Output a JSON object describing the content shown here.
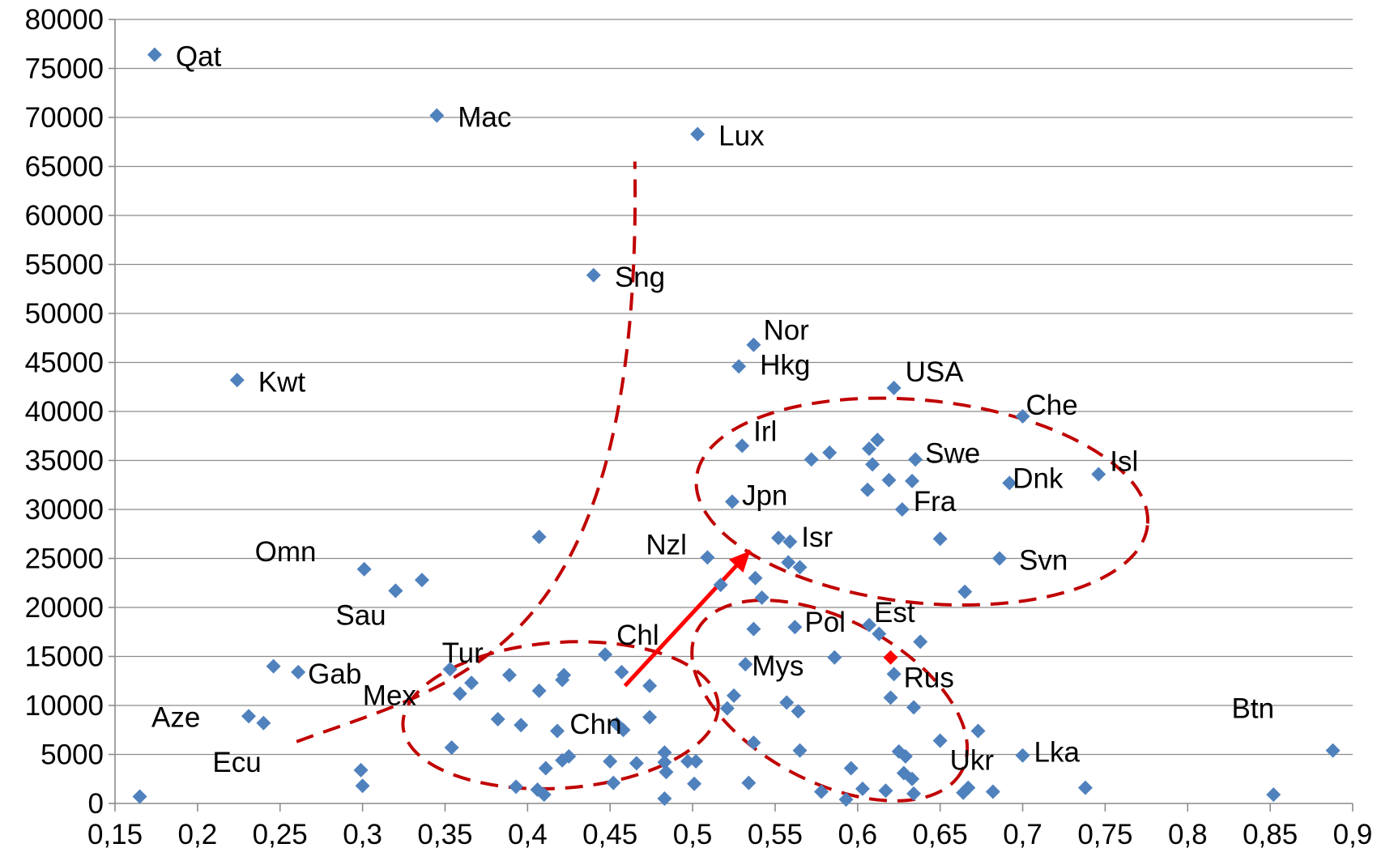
{
  "chart_data": {
    "type": "scatter",
    "title": "",
    "xlabel": "",
    "ylabel": "",
    "xlim": [
      0.15,
      0.9
    ],
    "ylim": [
      0,
      80000
    ],
    "x_ticks": [
      "0,15",
      "0,2",
      "0,25",
      "0,3",
      "0,35",
      "0,4",
      "0,45",
      "0,5",
      "0,55",
      "0,6",
      "0,65",
      "0,7",
      "0,75",
      "0,8",
      "0,85",
      "0,9"
    ],
    "y_ticks": [
      "0",
      "5000",
      "10000",
      "15000",
      "20000",
      "25000",
      "30000",
      "35000",
      "40000",
      "45000",
      "50000",
      "55000",
      "60000",
      "65000",
      "70000",
      "75000",
      "80000"
    ],
    "grid": "horizontal",
    "marker_color": "#4f81bd",
    "highlight_color": "#ff0000",
    "annotation_color": "#c00000",
    "labeled_points": [
      {
        "name": "Qat",
        "x": 0.174,
        "y": 76400
      },
      {
        "name": "Mac",
        "x": 0.345,
        "y": 70200
      },
      {
        "name": "Lux",
        "x": 0.503,
        "y": 68300
      },
      {
        "name": "Sng",
        "x": 0.44,
        "y": 53900
      },
      {
        "name": "Nor",
        "x": 0.537,
        "y": 46800
      },
      {
        "name": "Hkg",
        "x": 0.528,
        "y": 44600
      },
      {
        "name": "Kwt",
        "x": 0.224,
        "y": 43200
      },
      {
        "name": "USA",
        "x": 0.622,
        "y": 42400
      },
      {
        "name": "Che",
        "x": 0.7,
        "y": 39500
      },
      {
        "name": "Irl",
        "x": 0.53,
        "y": 36500
      },
      {
        "name": "Swe",
        "x": 0.635,
        "y": 35100
      },
      {
        "name": "Isl",
        "x": 0.746,
        "y": 33600
      },
      {
        "name": "Dnk",
        "x": 0.692,
        "y": 32700
      },
      {
        "name": "Jpn",
        "x": 0.524,
        "y": 30800
      },
      {
        "name": "Fra",
        "x": 0.627,
        "y": 30000
      },
      {
        "name": "Isr",
        "x": 0.559,
        "y": 26700
      },
      {
        "name": "Nzl",
        "x": 0.509,
        "y": 25100
      },
      {
        "name": "Svn",
        "x": 0.686,
        "y": 25000
      },
      {
        "name": "Omn",
        "x": 0.301,
        "y": 23900
      },
      {
        "name": "Sau",
        "x": 0.32,
        "y": 21700
      },
      {
        "name": "Pol",
        "x": 0.562,
        "y": 18000
      },
      {
        "name": "Est",
        "x": 0.607,
        "y": 18200
      },
      {
        "name": "Chl",
        "x": 0.447,
        "y": 15200
      },
      {
        "name": "Mys",
        "x": 0.532,
        "y": 14200
      },
      {
        "name": "Tur",
        "x": 0.353,
        "y": 13700
      },
      {
        "name": "Gab",
        "x": 0.261,
        "y": 13400
      },
      {
        "name": "Rus",
        "x": 0.622,
        "y": 13200
      },
      {
        "name": "Mex",
        "x": 0.359,
        "y": 11200
      },
      {
        "name": "Aze",
        "x": 0.231,
        "y": 8900
      },
      {
        "name": "Chn",
        "x": 0.454,
        "y": 8100
      },
      {
        "name": "Ecu",
        "x": 0.24,
        "y": 8200
      },
      {
        "name": "Ukr",
        "x": 0.65,
        "y": 6400
      },
      {
        "name": "Lka",
        "x": 0.7,
        "y": 4900
      },
      {
        "name": "Btn",
        "x": 0.888,
        "y": 5400
      }
    ],
    "label_texts": [
      "Qat",
      "Mac",
      "Lux",
      "Sng",
      "Nor",
      "Hkg",
      "Kwt",
      "USA",
      "Che",
      "Irl",
      "Swe",
      "Isl",
      "Dnk",
      "Jpn",
      "Fra",
      "Isr",
      "Nzl",
      "Svn",
      "Omn",
      "Sau",
      "Pol",
      "Est",
      "Chl",
      "Mys",
      "Tur",
      "Gab",
      "Rus",
      "Mex",
      "Aze",
      "Chn",
      "Ecu",
      "Ukr",
      "Lka",
      "Btn"
    ],
    "points": [
      [
        0.165,
        700
      ],
      [
        0.246,
        14000
      ],
      [
        0.299,
        3400
      ],
      [
        0.3,
        1800
      ],
      [
        0.32,
        21700
      ],
      [
        0.336,
        22800
      ],
      [
        0.354,
        5700
      ],
      [
        0.366,
        12300
      ],
      [
        0.389,
        13100
      ],
      [
        0.382,
        8600
      ],
      [
        0.396,
        8000
      ],
      [
        0.393,
        1700
      ],
      [
        0.407,
        27200
      ],
      [
        0.406,
        1400
      ],
      [
        0.41,
        900
      ],
      [
        0.411,
        3600
      ],
      [
        0.421,
        12600
      ],
      [
        0.422,
        13100
      ],
      [
        0.407,
        11500
      ],
      [
        0.418,
        7400
      ],
      [
        0.421,
        4400
      ],
      [
        0.425,
        4800
      ],
      [
        0.45,
        4300
      ],
      [
        0.452,
        2100
      ],
      [
        0.458,
        7500
      ],
      [
        0.457,
        13400
      ],
      [
        0.466,
        4100
      ],
      [
        0.474,
        12000
      ],
      [
        0.474,
        8800
      ],
      [
        0.483,
        5200
      ],
      [
        0.483,
        4200
      ],
      [
        0.484,
        3200
      ],
      [
        0.483,
        500
      ],
      [
        0.497,
        4300
      ],
      [
        0.501,
        2000
      ],
      [
        0.502,
        4300
      ],
      [
        0.517,
        22300
      ],
      [
        0.521,
        9700
      ],
      [
        0.525,
        11000
      ],
      [
        0.534,
        2100
      ],
      [
        0.537,
        6200
      ],
      [
        0.537,
        17800
      ],
      [
        0.538,
        23000
      ],
      [
        0.542,
        21000
      ],
      [
        0.552,
        27100
      ],
      [
        0.558,
        24600
      ],
      [
        0.565,
        24100
      ],
      [
        0.557,
        10300
      ],
      [
        0.564,
        9400
      ],
      [
        0.565,
        5400
      ],
      [
        0.572,
        35100
      ],
      [
        0.583,
        35800
      ],
      [
        0.586,
        14900
      ],
      [
        0.578,
        1200
      ],
      [
        0.593,
        400
      ],
      [
        0.596,
        3600
      ],
      [
        0.603,
        1500
      ],
      [
        0.606,
        32000
      ],
      [
        0.607,
        36200
      ],
      [
        0.609,
        34600
      ],
      [
        0.612,
        37100
      ],
      [
        0.613,
        17300
      ],
      [
        0.619,
        33000
      ],
      [
        0.617,
        1300
      ],
      [
        0.62,
        10800
      ],
      [
        0.625,
        5300
      ],
      [
        0.629,
        4800
      ],
      [
        0.628,
        3100
      ],
      [
        0.633,
        2500
      ],
      [
        0.634,
        9800
      ],
      [
        0.633,
        32900
      ],
      [
        0.634,
        1000
      ],
      [
        0.638,
        16500
      ],
      [
        0.65,
        27000
      ],
      [
        0.665,
        21600
      ],
      [
        0.664,
        1100
      ],
      [
        0.667,
        1600
      ],
      [
        0.673,
        7400
      ],
      [
        0.682,
        1200
      ],
      [
        0.738,
        1600
      ],
      [
        0.852,
        900
      ]
    ],
    "highlight_points": [
      [
        0.62,
        14900
      ]
    ]
  }
}
